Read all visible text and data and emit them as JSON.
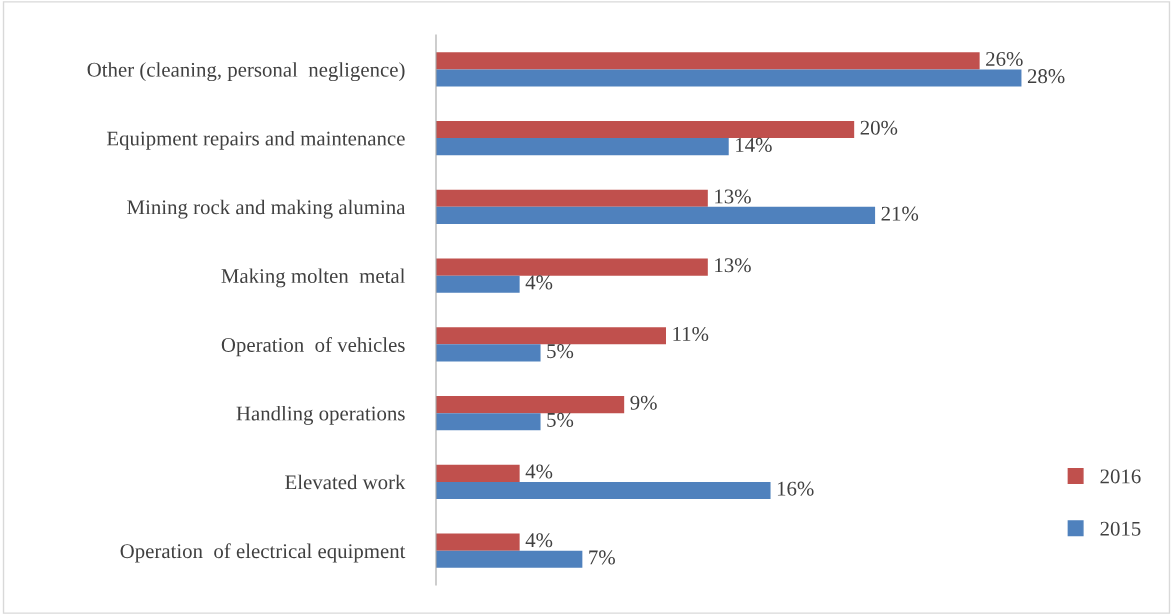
{
  "chart_data": {
    "type": "bar",
    "orientation": "horizontal",
    "categories": [
      "Other (cleaning, personal  negligence)",
      "Equipment repairs and maintenance",
      "Mining rock and making alumina",
      "Making molten  metal",
      "Operation  of vehicles",
      "Handling operations",
      "Elevated work",
      "Operation  of electrical equipment"
    ],
    "series": [
      {
        "name": "2016",
        "color": "#c0504d",
        "values": [
          26,
          20,
          13,
          13,
          11,
          9,
          4,
          4
        ],
        "value_labels": [
          "26%",
          "20%",
          "13%",
          "13%",
          "11%",
          "9%",
          "4%",
          "4%"
        ]
      },
      {
        "name": "2015",
        "color": "#4f81bd",
        "values": [
          28,
          14,
          21,
          4,
          5,
          5,
          16,
          7
        ],
        "value_labels": [
          "28%",
          "14%",
          "21%",
          "4%",
          "5%",
          "5%",
          "16%",
          "7%"
        ]
      }
    ],
    "legend": "right",
    "grid": false,
    "tick_labels": "y"
  }
}
